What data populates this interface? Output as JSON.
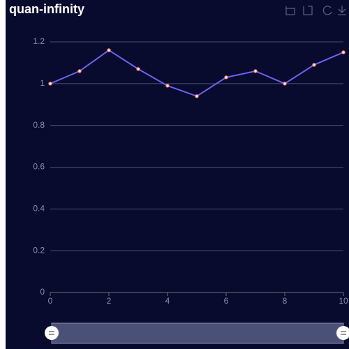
{
  "chart_data": {
    "type": "line",
    "title": "quan-infinity",
    "x": [
      0,
      1,
      2,
      3,
      4,
      5,
      6,
      7,
      8,
      9,
      10
    ],
    "values": [
      1.0,
      1.06,
      1.16,
      1.07,
      0.99,
      0.94,
      1.03,
      1.06,
      1.0,
      1.09,
      1.15
    ],
    "color": "#7060f0",
    "xlim": [
      0,
      10
    ],
    "xticks": [
      0,
      2,
      4,
      6,
      8,
      10
    ],
    "ylim": [
      0,
      1.2
    ],
    "yticks": [
      0,
      0.2,
      0.4,
      0.6,
      0.8,
      1,
      1.2
    ],
    "grid": true
  }
}
